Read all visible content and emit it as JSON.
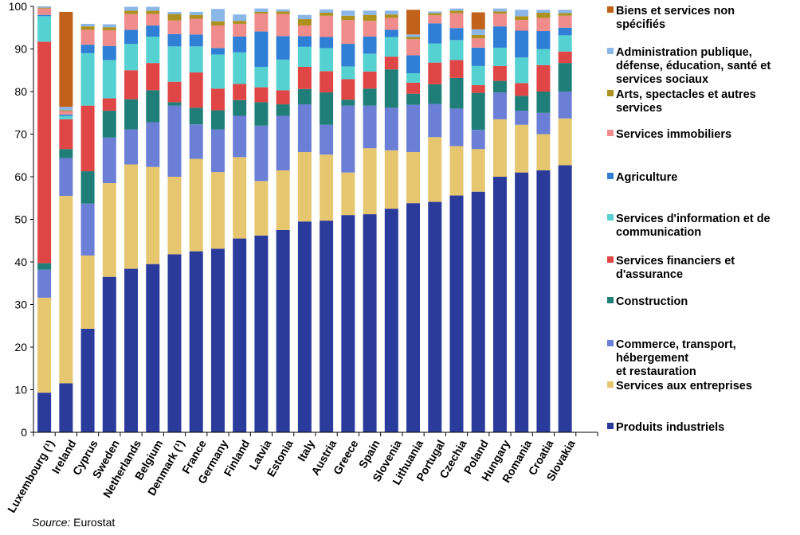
{
  "chart_data": {
    "type": "bar",
    "stacked": true,
    "ylim": [
      0,
      100
    ],
    "yticks": [
      0,
      10,
      20,
      30,
      40,
      50,
      60,
      70,
      80,
      90,
      100
    ],
    "categories": [
      "Luxembourg (¹)",
      "Ireland",
      "Cyprus",
      "Sweden",
      "Netherlands",
      "Belgium",
      "Denmark (¹)",
      "France",
      "Germany",
      "Finland",
      "Latvia",
      "Estonia",
      "Italy",
      "Austria",
      "Greece",
      "Spain",
      "Slovenia",
      "Lithuania",
      "Portugal",
      "Czechia",
      "Poland",
      "Hungary",
      "Romania",
      "Croatia",
      "Slovakia"
    ],
    "series": [
      {
        "name": "Produits industriels",
        "color": "#2a3b9c",
        "values": [
          9.3,
          11.5,
          24.3,
          36.5,
          38.4,
          39.5,
          41.8,
          42.5,
          43.1,
          45.5,
          46.2,
          47.5,
          49.5,
          49.7,
          51.0,
          51.2,
          52.5,
          53.8,
          54.1,
          55.6,
          56.5,
          60.0,
          61.0,
          61.5,
          62.7
        ]
      },
      {
        "name": "Services aux entreprises",
        "color": "#e6c66f",
        "values": [
          22.3,
          44.0,
          17.2,
          22.0,
          24.5,
          22.8,
          18.2,
          21.7,
          18.0,
          19.1,
          12.8,
          14.0,
          16.3,
          15.5,
          10.0,
          15.5,
          13.7,
          12.0,
          15.2,
          11.6,
          10.0,
          13.5,
          11.2,
          8.5,
          11.0
        ]
      },
      {
        "name": "Commerce, transport, hébergement et restauration",
        "color": "#6b7fd6",
        "values": [
          6.6,
          8.9,
          12.2,
          10.7,
          8.2,
          10.5,
          16.7,
          8.1,
          10.0,
          9.7,
          13.0,
          12.8,
          11.2,
          7.0,
          15.7,
          10.0,
          10.0,
          11.1,
          7.8,
          8.8,
          4.5,
          6.3,
          3.3,
          5.0,
          6.3
        ]
      },
      {
        "name": "Construction",
        "color": "#1f7f78",
        "values": [
          1.5,
          2.1,
          7.6,
          6.3,
          7.1,
          7.5,
          0.8,
          3.9,
          4.5,
          3.7,
          5.5,
          2.7,
          3.6,
          7.6,
          1.4,
          4.0,
          9.0,
          2.6,
          4.6,
          7.2,
          8.7,
          2.7,
          3.5,
          5.0,
          6.7
        ]
      },
      {
        "name": "Services financiers et d'assurance",
        "color": "#e04646",
        "values": [
          52.0,
          7.0,
          15.4,
          2.9,
          6.8,
          6.4,
          4.8,
          8.3,
          5.1,
          3.8,
          3.5,
          3.3,
          5.2,
          5.0,
          4.8,
          4.0,
          3.0,
          2.6,
          5.1,
          4.2,
          1.8,
          3.5,
          3.0,
          6.2,
          2.7
        ]
      },
      {
        "name": "Services d'information et de communication",
        "color": "#56d1d1",
        "values": [
          6.0,
          0.8,
          12.3,
          9.0,
          6.2,
          6.2,
          8.3,
          6.1,
          8.0,
          7.4,
          4.8,
          7.2,
          4.7,
          5.4,
          3.0,
          4.2,
          4.6,
          2.2,
          4.5,
          4.7,
          4.5,
          4.3,
          6.0,
          3.8,
          3.8
        ]
      },
      {
        "name": "Agriculture",
        "color": "#2f7fd6",
        "values": [
          0.3,
          0.3,
          2.0,
          3.3,
          3.3,
          2.6,
          2.9,
          2.8,
          1.5,
          3.7,
          8.3,
          5.5,
          2.5,
          2.6,
          5.3,
          4.0,
          1.7,
          4.2,
          4.7,
          2.8,
          4.3,
          5.0,
          6.3,
          4.2,
          1.8
        ]
      },
      {
        "name": "Services immobiliers",
        "color": "#f08c8c",
        "values": [
          1.5,
          0.8,
          3.5,
          3.7,
          3.7,
          2.7,
          3.2,
          3.7,
          5.3,
          3.0,
          4.2,
          5.2,
          2.5,
          5.0,
          5.6,
          3.7,
          2.8,
          3.8,
          1.9,
          3.5,
          2.2,
          3.0,
          2.5,
          3.1,
          2.8
        ]
      },
      {
        "name": "Arts, spectacles et autres services",
        "color": "#ad911f",
        "values": [
          0.2,
          0.2,
          0.8,
          0.7,
          0.8,
          0.8,
          1.5,
          0.9,
          1.0,
          0.7,
          0.4,
          0.6,
          1.5,
          0.7,
          1.0,
          1.4,
          0.8,
          0.5,
          0.5,
          0.6,
          0.8,
          0.5,
          0.9,
          1.2,
          0.6
        ]
      },
      {
        "name": "Administration publique, défense, éducation, santé et services sociaux",
        "color": "#8ab6e8",
        "values": [
          0.3,
          0.8,
          0.6,
          0.7,
          0.9,
          0.9,
          0.5,
          0.7,
          2.9,
          1.5,
          0.8,
          0.5,
          1.0,
          0.8,
          1.2,
          1.0,
          0.9,
          0.6,
          0.4,
          0.5,
          1.3,
          0.7,
          1.5,
          0.7,
          0.8
        ]
      },
      {
        "name": "Biens et services non spécifiés",
        "color": "#c1621b",
        "values": [
          0.0,
          22.3,
          0.0,
          0.0,
          0.0,
          0.0,
          0.0,
          0.0,
          0.0,
          0.0,
          0.0,
          0.0,
          0.0,
          0.0,
          0.0,
          0.0,
          0.0,
          5.8,
          0.0,
          0.0,
          4.0,
          0.0,
          0.0,
          0.0,
          0.0
        ]
      }
    ],
    "legend_order": [
      10,
      9,
      8,
      7,
      6,
      5,
      4,
      3,
      2,
      1,
      0
    ],
    "legend_lines": [
      [
        "Biens et services non",
        "spécifiés"
      ],
      [
        "Administration publique,",
        "défense, éducation, santé et",
        "services sociaux"
      ],
      [
        "Arts, spectacles et autres",
        "services"
      ],
      [
        "Services immobiliers"
      ],
      [
        "Agriculture"
      ],
      [
        "Services d'information et de",
        "communication"
      ],
      [
        "Services financiers et",
        "d'assurance"
      ],
      [
        "Construction"
      ],
      [
        "Commerce, transport,",
        "hébergement",
        "et restauration"
      ],
      [
        "Services aux entreprises"
      ],
      [
        "Produits industriels"
      ]
    ],
    "legend_placement": "right",
    "grid": false
  },
  "source": {
    "label": "Source:",
    "value": " Eurostat"
  }
}
